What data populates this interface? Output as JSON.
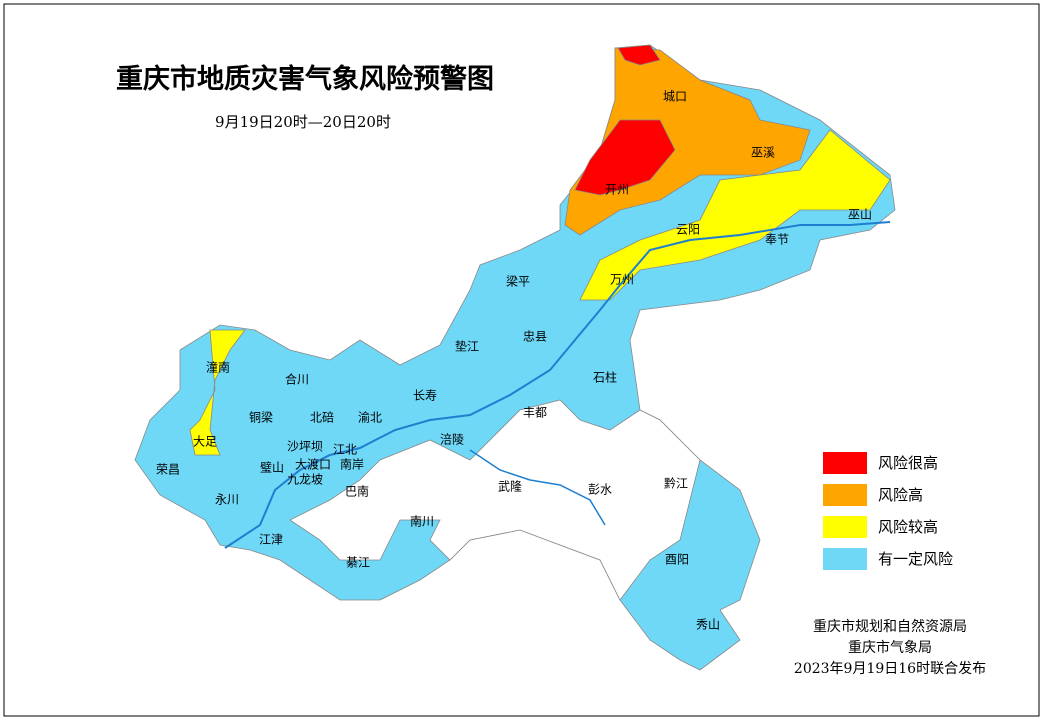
{
  "title": "重庆市地质灾害气象风险预警图",
  "subtitle": "9月19日20时—20日20时",
  "legend": [
    {
      "label": "风险很高",
      "color": "#ff0000"
    },
    {
      "label": "风险高",
      "color": "#ffa500"
    },
    {
      "label": "风险较高",
      "color": "#ffff00"
    },
    {
      "label": "有一定风险",
      "color": "#6fd8f7"
    }
  ],
  "places": [
    "城口",
    "巫溪",
    "开州",
    "云阳",
    "奉节",
    "巫山",
    "万州",
    "梁平",
    "垫江",
    "忠县",
    "石柱",
    "丰都",
    "长寿",
    "涪陵",
    "渝北",
    "北碚",
    "合川",
    "潼南",
    "铜梁",
    "大足",
    "荣昌",
    "永川",
    "璧山",
    "沙坪坝",
    "江北",
    "大渡口",
    "南岸",
    "九龙坡",
    "巴南",
    "江津",
    "綦江",
    "南川",
    "武隆",
    "彭水",
    "黔江",
    "酉阳",
    "秀山"
  ],
  "issuer": [
    "重庆市规划和自然资源局",
    "重庆市气象局",
    "2023年9月19日16时联合发布"
  ]
}
